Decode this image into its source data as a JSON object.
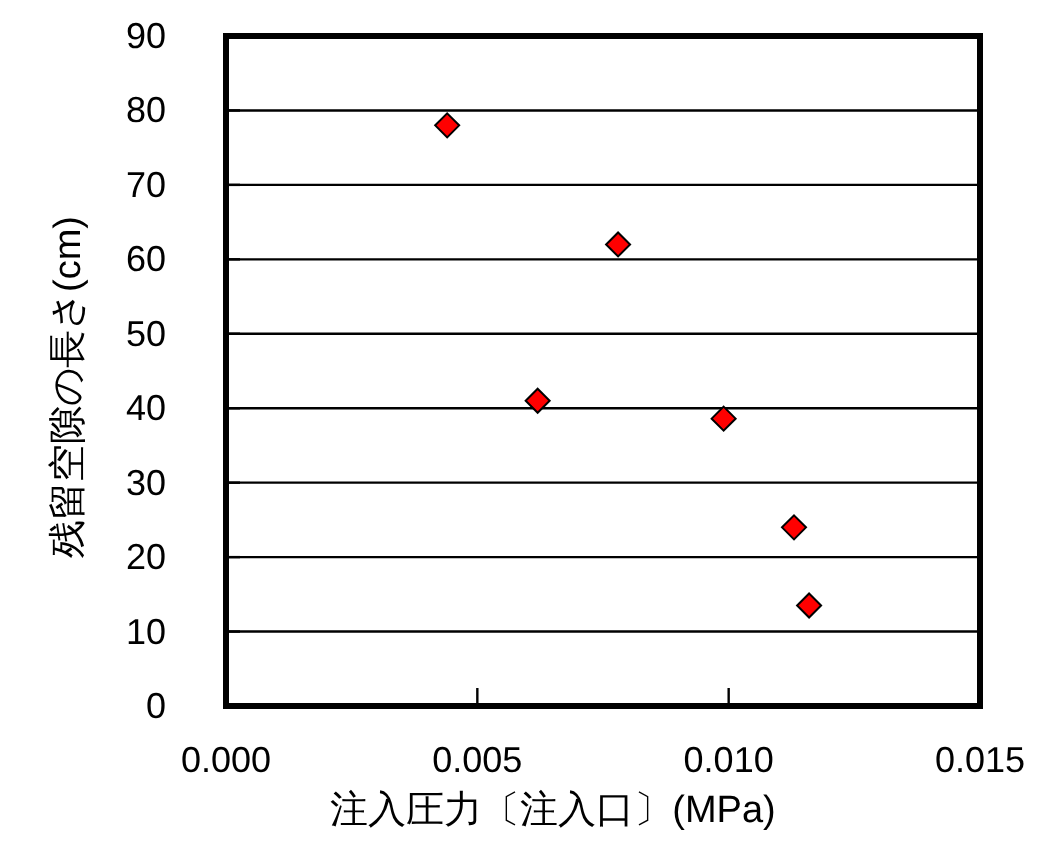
{
  "chart_data": {
    "type": "scatter",
    "xlabel": "注入圧力〔注入口〕(MPa)",
    "ylabel": "残留空隙の長さ(cm)",
    "x": [
      0.0044,
      0.0078,
      0.0062,
      0.0099,
      0.0113,
      0.0116
    ],
    "series": [
      {
        "color": "#ff0000",
        "values": [
          78,
          62,
          41,
          38.6,
          24,
          13.5
        ]
      }
    ],
    "marker": "diamond",
    "grid": "y",
    "xlim": [
      0,
      0.015
    ],
    "xticks": [
      {
        "value": 0,
        "label": "0.000"
      },
      {
        "value": 0.005,
        "label": "0.005"
      },
      {
        "value": 0.01,
        "label": "0.010"
      },
      {
        "value": 0.015,
        "label": "0.015"
      }
    ],
    "ylim": [
      0,
      90
    ],
    "yticks": [
      0,
      10,
      20,
      30,
      40,
      50,
      60,
      70,
      80,
      90
    ]
  }
}
